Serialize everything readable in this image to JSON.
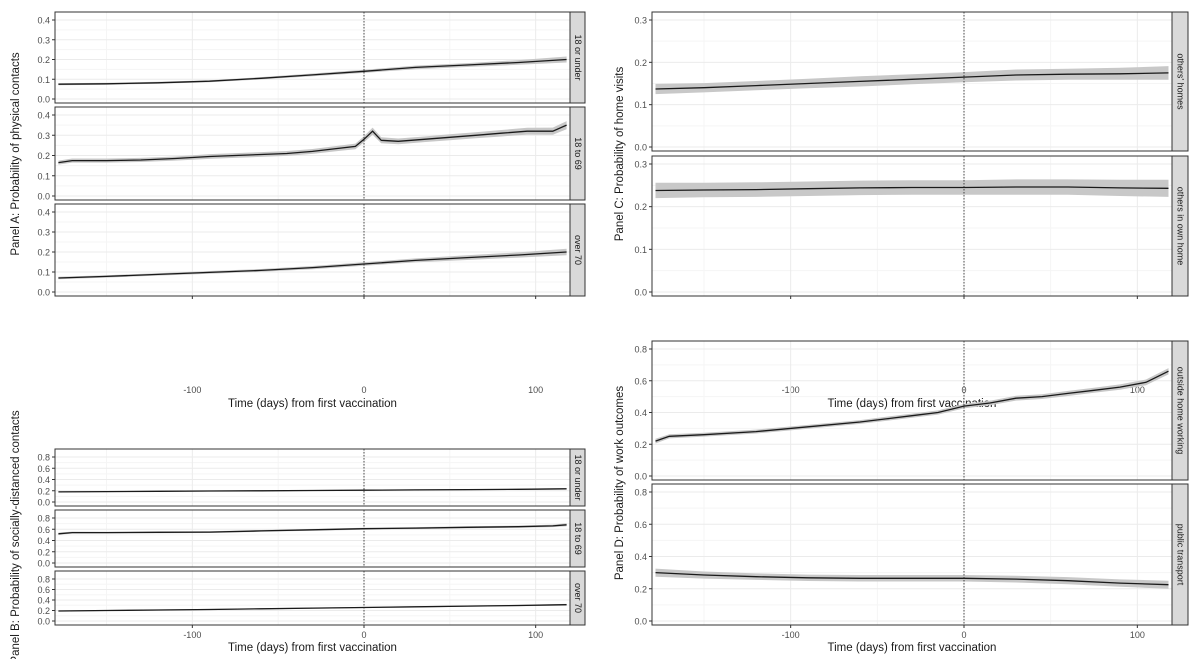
{
  "figure": {
    "xlabel": "Time (days) from first vaccination"
  },
  "colors": {
    "line": "#1a1a1a",
    "ribbon": "#c8c8c8",
    "strip": "#d9d9d9",
    "grid_major": "#ebebeb",
    "grid_minor": "#f5f5f5",
    "frame": "#333333"
  },
  "chart_data": [
    {
      "id": "panel-a",
      "type": "line",
      "ylabel": "Panel A: Probability of physical contacts",
      "xlabel": "Time (days) from first vaccination",
      "x_ticks": [
        "-100",
        "0",
        "100"
      ],
      "x_tick_values": [
        -100,
        0,
        100
      ],
      "xlim": [
        -180,
        120
      ],
      "vline": 0,
      "facets": [
        {
          "strip": "18 or under",
          "ylim": [
            0,
            0.4
          ],
          "y_ticks": [
            "0.0",
            "0.1",
            "0.2",
            "0.3",
            "0.4"
          ],
          "y_tick_values": [
            0,
            0.1,
            0.2,
            0.3,
            0.4
          ],
          "x": [
            -178,
            -150,
            -120,
            -90,
            -60,
            -30,
            0,
            30,
            60,
            90,
            118
          ],
          "y": [
            0.075,
            0.077,
            0.082,
            0.09,
            0.105,
            0.122,
            0.14,
            0.16,
            0.172,
            0.185,
            0.2
          ],
          "band": [
            0.005,
            0.005,
            0.005,
            0.005,
            0.006,
            0.007,
            0.008,
            0.009,
            0.01,
            0.012,
            0.015
          ]
        },
        {
          "strip": "18 to 69",
          "ylim": [
            0,
            0.4
          ],
          "y_ticks": [
            "0.0",
            "0.1",
            "0.2",
            "0.3",
            "0.4"
          ],
          "y_tick_values": [
            0,
            0.1,
            0.2,
            0.3,
            0.4
          ],
          "x": [
            -178,
            -170,
            -150,
            -130,
            -110,
            -90,
            -75,
            -60,
            -45,
            -30,
            -15,
            -5,
            0,
            5,
            10,
            20,
            35,
            50,
            65,
            80,
            95,
            110,
            118
          ],
          "y": [
            0.165,
            0.175,
            0.175,
            0.178,
            0.185,
            0.195,
            0.2,
            0.205,
            0.21,
            0.22,
            0.235,
            0.245,
            0.28,
            0.32,
            0.275,
            0.27,
            0.28,
            0.29,
            0.3,
            0.31,
            0.32,
            0.32,
            0.35
          ],
          "band": [
            0.01,
            0.01,
            0.01,
            0.01,
            0.01,
            0.012,
            0.012,
            0.012,
            0.012,
            0.012,
            0.013,
            0.014,
            0.015,
            0.018,
            0.015,
            0.014,
            0.014,
            0.015,
            0.015,
            0.016,
            0.017,
            0.018,
            0.02
          ]
        },
        {
          "strip": "over 70",
          "ylim": [
            0,
            0.4
          ],
          "y_ticks": [
            "0.0",
            "0.1",
            "0.2",
            "0.3",
            "0.4"
          ],
          "y_tick_values": [
            0,
            0.1,
            0.2,
            0.3,
            0.4
          ],
          "x": [
            -178,
            -150,
            -120,
            -90,
            -60,
            -30,
            0,
            30,
            60,
            90,
            118
          ],
          "y": [
            0.07,
            0.078,
            0.088,
            0.098,
            0.108,
            0.122,
            0.14,
            0.158,
            0.172,
            0.185,
            0.2
          ],
          "band": [
            0.006,
            0.006,
            0.006,
            0.007,
            0.007,
            0.008,
            0.009,
            0.01,
            0.012,
            0.013,
            0.016
          ]
        }
      ]
    },
    {
      "id": "panel-b",
      "type": "line",
      "ylabel": "Panel B: Probability of socially-distanced contacts",
      "xlabel": "Time (days) from first vaccination",
      "x_ticks": [
        "-100",
        "0",
        "100"
      ],
      "x_tick_values": [
        -100,
        0,
        100
      ],
      "xlim": [
        -180,
        120
      ],
      "vline": 0,
      "facets": [
        {
          "strip": "18 or under",
          "ylim": [
            0,
            0.8
          ],
          "y_ticks": [
            "0.0",
            "0.2",
            "0.4",
            "0.6",
            "0.8"
          ],
          "y_tick_values": [
            0,
            0.2,
            0.4,
            0.6,
            0.8
          ],
          "x": [
            -178,
            -150,
            -120,
            -90,
            -60,
            -30,
            0,
            30,
            60,
            90,
            118
          ],
          "y": [
            0.18,
            0.185,
            0.19,
            0.195,
            0.2,
            0.205,
            0.21,
            0.215,
            0.22,
            0.225,
            0.235
          ],
          "band": [
            0.008,
            0.008,
            0.008,
            0.008,
            0.008,
            0.008,
            0.009,
            0.009,
            0.01,
            0.011,
            0.012
          ]
        },
        {
          "strip": "18 to 69",
          "ylim": [
            0,
            0.8
          ],
          "y_ticks": [
            "0.0",
            "0.2",
            "0.4",
            "0.6",
            "0.8"
          ],
          "y_tick_values": [
            0,
            0.2,
            0.4,
            0.6,
            0.8
          ],
          "x": [
            -178,
            -170,
            -150,
            -120,
            -90,
            -60,
            -30,
            0,
            30,
            60,
            90,
            110,
            118
          ],
          "y": [
            0.52,
            0.54,
            0.54,
            0.545,
            0.55,
            0.57,
            0.59,
            0.61,
            0.62,
            0.635,
            0.645,
            0.66,
            0.68
          ],
          "band": [
            0.02,
            0.018,
            0.016,
            0.016,
            0.016,
            0.016,
            0.017,
            0.018,
            0.018,
            0.019,
            0.02,
            0.022,
            0.025
          ]
        },
        {
          "strip": "over 70",
          "ylim": [
            0,
            0.8
          ],
          "y_ticks": [
            "0.0",
            "0.2",
            "0.4",
            "0.6",
            "0.8"
          ],
          "y_tick_values": [
            0,
            0.2,
            0.4,
            0.6,
            0.8
          ],
          "x": [
            -178,
            -150,
            -120,
            -90,
            -60,
            -30,
            0,
            30,
            60,
            90,
            118
          ],
          "y": [
            0.19,
            0.2,
            0.21,
            0.22,
            0.232,
            0.245,
            0.258,
            0.27,
            0.283,
            0.295,
            0.31
          ],
          "band": [
            0.01,
            0.01,
            0.01,
            0.01,
            0.01,
            0.011,
            0.011,
            0.012,
            0.013,
            0.014,
            0.016
          ]
        }
      ]
    },
    {
      "id": "panel-c",
      "type": "line",
      "ylabel": "Panel C: Probability of home visits",
      "xlabel": "Time (days) from first vaccination",
      "x_ticks": [
        "-100",
        "0",
        "100"
      ],
      "x_tick_values": [
        -100,
        0,
        100
      ],
      "xlim": [
        -180,
        120
      ],
      "vline": 0,
      "facets": [
        {
          "strip": "others' homes",
          "ylim": [
            0,
            0.3
          ],
          "y_ticks": [
            "0.0",
            "0.1",
            "0.2",
            "0.3"
          ],
          "y_tick_values": [
            0,
            0.1,
            0.2,
            0.3
          ],
          "x": [
            -178,
            -150,
            -120,
            -90,
            -60,
            -30,
            0,
            30,
            60,
            90,
            118
          ],
          "y": [
            0.137,
            0.14,
            0.145,
            0.15,
            0.155,
            0.16,
            0.165,
            0.17,
            0.172,
            0.173,
            0.175
          ],
          "band": [
            0.012,
            0.011,
            0.011,
            0.011,
            0.012,
            0.012,
            0.012,
            0.013,
            0.013,
            0.014,
            0.016
          ]
        },
        {
          "strip": "others in own home",
          "ylim": [
            0,
            0.3
          ],
          "y_ticks": [
            "0.0",
            "0.1",
            "0.2",
            "0.3"
          ],
          "y_tick_values": [
            0,
            0.1,
            0.2,
            0.3
          ],
          "x": [
            -178,
            -150,
            -120,
            -90,
            -60,
            -30,
            0,
            30,
            60,
            90,
            118
          ],
          "y": [
            0.238,
            0.239,
            0.24,
            0.242,
            0.244,
            0.245,
            0.245,
            0.246,
            0.246,
            0.244,
            0.243
          ],
          "band": [
            0.018,
            0.017,
            0.017,
            0.017,
            0.017,
            0.017,
            0.017,
            0.018,
            0.018,
            0.019,
            0.02
          ]
        }
      ]
    },
    {
      "id": "panel-d",
      "type": "line",
      "ylabel": "Panel D: Probability of work outcomes",
      "xlabel": "Time (days) from first vaccination",
      "x_ticks": [
        "-100",
        "0",
        "100"
      ],
      "x_tick_values": [
        -100,
        0,
        100
      ],
      "xlim": [
        -180,
        120
      ],
      "vline": 0,
      "facets": [
        {
          "strip": "outside home working",
          "ylim": [
            0,
            0.8
          ],
          "y_ticks": [
            "0.0",
            "0.2",
            "0.4",
            "0.6",
            "0.8"
          ],
          "y_tick_values": [
            0,
            0.2,
            0.4,
            0.6,
            0.8
          ],
          "x": [
            -178,
            -170,
            -150,
            -120,
            -90,
            -60,
            -45,
            -30,
            -15,
            0,
            15,
            30,
            45,
            60,
            75,
            90,
            105,
            118
          ],
          "y": [
            0.22,
            0.25,
            0.26,
            0.28,
            0.31,
            0.34,
            0.36,
            0.38,
            0.4,
            0.44,
            0.46,
            0.49,
            0.5,
            0.52,
            0.54,
            0.56,
            0.59,
            0.66
          ],
          "band": [
            0.015,
            0.013,
            0.012,
            0.012,
            0.012,
            0.012,
            0.013,
            0.013,
            0.013,
            0.014,
            0.014,
            0.015,
            0.015,
            0.016,
            0.016,
            0.017,
            0.018,
            0.02
          ]
        },
        {
          "strip": "public transport",
          "ylim": [
            0,
            0.8
          ],
          "y_ticks": [
            "0.0",
            "0.2",
            "0.4",
            "0.6",
            "0.8"
          ],
          "y_tick_values": [
            0,
            0.2,
            0.4,
            0.6,
            0.8
          ],
          "x": [
            -178,
            -150,
            -120,
            -90,
            -60,
            -30,
            0,
            30,
            60,
            90,
            118
          ],
          "y": [
            0.3,
            0.285,
            0.275,
            0.268,
            0.265,
            0.265,
            0.265,
            0.26,
            0.25,
            0.235,
            0.225
          ],
          "band": [
            0.025,
            0.022,
            0.02,
            0.02,
            0.02,
            0.02,
            0.02,
            0.021,
            0.022,
            0.023,
            0.025
          ]
        }
      ]
    }
  ]
}
